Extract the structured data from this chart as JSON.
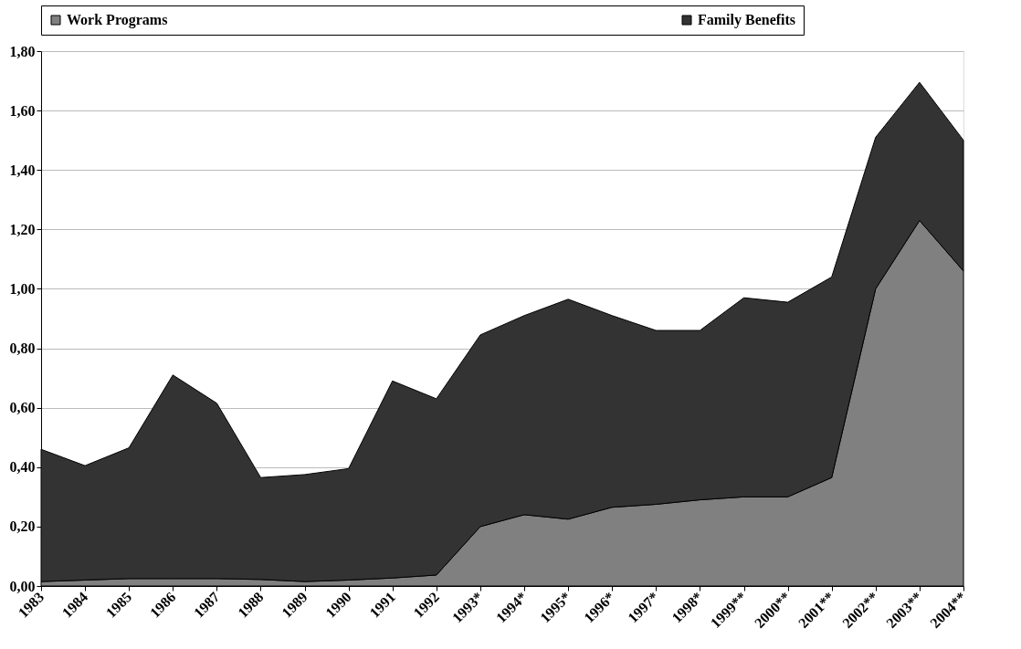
{
  "chart_data": {
    "type": "area",
    "stacked": true,
    "categories": [
      "1983",
      "1984",
      "1985",
      "1986",
      "1987",
      "1988",
      "1989",
      "1990",
      "1991",
      "1992",
      "1993*",
      "1994*",
      "1995*",
      "1996*",
      "1997*",
      "1998*",
      "1999**",
      "2000**",
      "2001**",
      "2002**",
      "2003**",
      "2004**"
    ],
    "series": [
      {
        "name": "Work Programs",
        "color": "#808080",
        "values": [
          0.015,
          0.02,
          0.025,
          0.025,
          0.025,
          0.022,
          0.015,
          0.02,
          0.027,
          0.037,
          0.2,
          0.24,
          0.225,
          0.265,
          0.275,
          0.29,
          0.3,
          0.3,
          0.365,
          1.0,
          1.23,
          1.06
        ]
      },
      {
        "name": "Family Benefits",
        "color": "#333333",
        "values": [
          0.445,
          0.385,
          0.44,
          0.685,
          0.59,
          0.343,
          0.36,
          0.375,
          0.663,
          0.593,
          0.645,
          0.67,
          0.74,
          0.645,
          0.585,
          0.57,
          0.67,
          0.655,
          0.675,
          0.51,
          0.465,
          0.44
        ]
      }
    ],
    "ylim": [
      0,
      1.8
    ],
    "yticks": [
      {
        "value": 0,
        "label": "0,00"
      },
      {
        "value": 0.2,
        "label": "0,20"
      },
      {
        "value": 0.4,
        "label": "0,40"
      },
      {
        "value": 0.6,
        "label": "0,60"
      },
      {
        "value": 0.8,
        "label": "0,80"
      },
      {
        "value": 1.0,
        "label": "1,00"
      },
      {
        "value": 1.2,
        "label": "1,20"
      },
      {
        "value": 1.4,
        "label": "1,40"
      },
      {
        "value": 1.6,
        "label": "1,60"
      },
      {
        "value": 1.8,
        "label": "1,80"
      }
    ],
    "grid": "y",
    "legend": "top"
  }
}
